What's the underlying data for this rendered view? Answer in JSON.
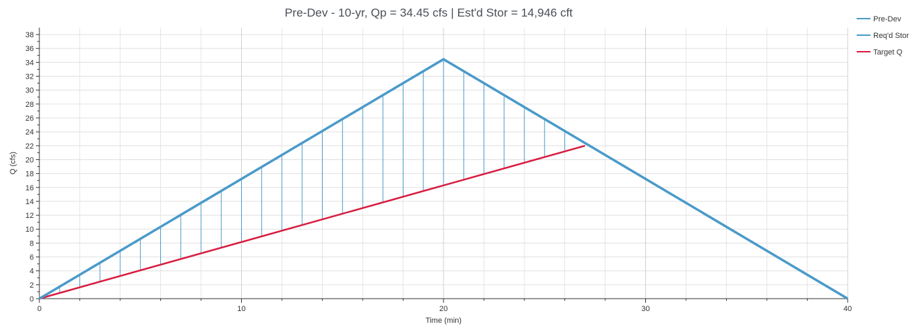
{
  "chart_data": {
    "type": "line",
    "title": "Pre-Dev - 10-yr, Qp = 34.45 cfs | Est'd Stor = 14,946 cft",
    "xlabel": "Time (min)",
    "ylabel": "Q (cfs)",
    "xlim": [
      0,
      40
    ],
    "ylim": [
      0,
      39
    ],
    "x_ticks": [
      0,
      10,
      20,
      30,
      40
    ],
    "y_ticks": [
      0,
      2,
      4,
      6,
      8,
      10,
      12,
      14,
      16,
      18,
      20,
      22,
      24,
      26,
      28,
      30,
      32,
      34,
      36,
      38
    ],
    "grid": true,
    "legend_position": "top-right",
    "series": [
      {
        "name": "Pre-Dev",
        "color": "#4a9ac9",
        "style": "line",
        "x": [
          0,
          20,
          40
        ],
        "y": [
          0,
          34.45,
          0
        ]
      },
      {
        "name": "Req'd Stor",
        "color": "#4a9ac9",
        "style": "vertical-fill",
        "x": [
          1,
          2,
          3,
          4,
          5,
          6,
          7,
          8,
          9,
          10,
          11,
          12,
          13,
          14,
          15,
          16,
          17,
          18,
          19,
          20,
          21,
          22,
          23,
          24,
          25,
          26
        ],
        "y_upper": [
          1.72,
          3.45,
          5.17,
          6.89,
          8.61,
          10.34,
          12.06,
          13.78,
          15.5,
          17.23,
          18.95,
          20.67,
          22.39,
          24.12,
          25.84,
          27.56,
          29.28,
          31.01,
          32.73,
          34.45,
          32.73,
          31.01,
          29.28,
          27.56,
          25.84,
          24.12
        ],
        "y_lower": [
          0.81,
          1.63,
          2.44,
          3.26,
          4.07,
          4.89,
          5.7,
          6.52,
          7.33,
          8.15,
          8.96,
          9.78,
          10.59,
          11.41,
          12.22,
          13.04,
          13.85,
          14.67,
          15.48,
          16.3,
          17.11,
          17.93,
          18.74,
          19.56,
          20.37,
          21.19
        ]
      },
      {
        "name": "Target Q",
        "color": "#d81c3f",
        "style": "line",
        "x": [
          0,
          27
        ],
        "y": [
          0,
          22
        ]
      }
    ]
  }
}
